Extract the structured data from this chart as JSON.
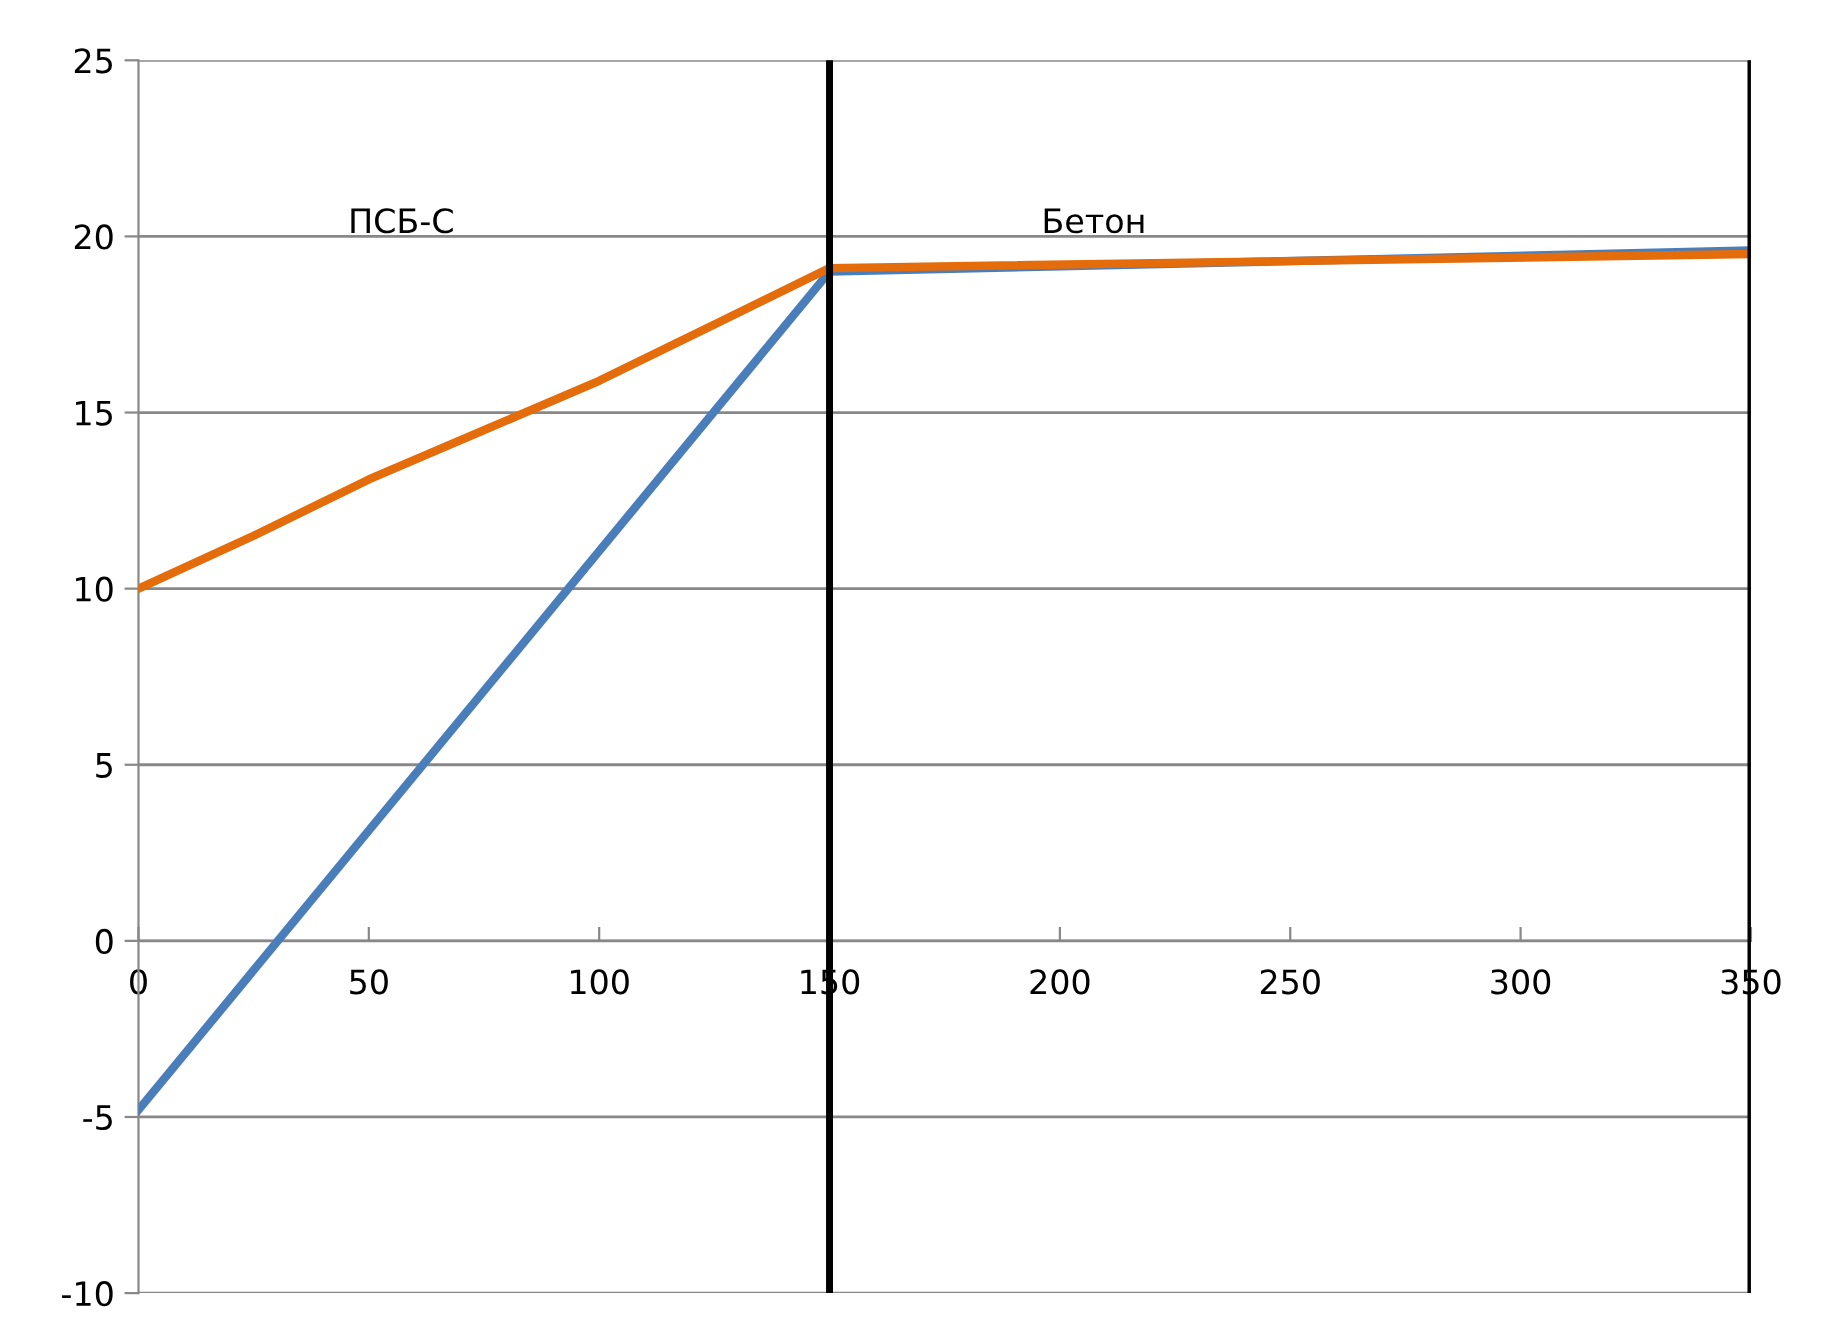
{
  "chart_data": {
    "type": "line",
    "x": [
      0,
      25,
      50,
      75,
      100,
      125,
      150,
      350
    ],
    "series": [
      {
        "color": "#4a7ebb",
        "values": [
          -4.8,
          null,
          null,
          null,
          null,
          null,
          19.0,
          19.6
        ]
      },
      {
        "color": "#e46c0a",
        "values": [
          10.0,
          11.5,
          13.1,
          14.5,
          15.9,
          17.5,
          19.1,
          19.5
        ]
      }
    ],
    "xlim": [
      0,
      350
    ],
    "xticks": [
      0,
      50,
      100,
      150,
      200,
      250,
      300,
      350
    ],
    "ylim": [
      -10,
      25
    ],
    "yticks": [
      -10,
      -5,
      0,
      5,
      10,
      15,
      20,
      25
    ],
    "grid": "y",
    "marker": "none",
    "line_style": "solid",
    "legend": false,
    "ref_lines": [
      {
        "axis": "x",
        "value": 150,
        "color": "#000000"
      },
      {
        "axis": "x",
        "value": 350,
        "color": "#000000"
      }
    ],
    "annotations": [
      "ПСБ-С",
      "Бетон"
    ]
  }
}
